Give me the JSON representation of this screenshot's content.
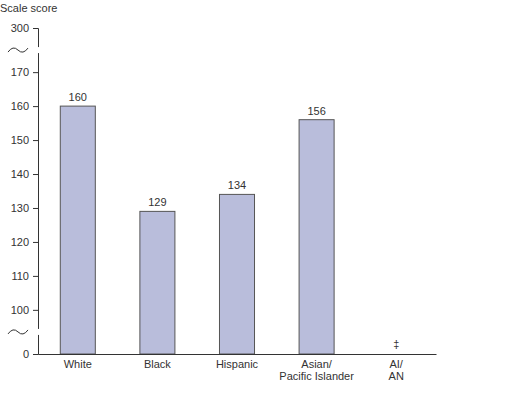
{
  "chart_data": {
    "type": "bar",
    "y_label": "Scale score",
    "categories": [
      "White",
      "Black",
      "Hispanic",
      "Asian/Pacific Islander",
      "AI/AN"
    ],
    "values": [
      160,
      129,
      134,
      156,
      null
    ],
    "value_labels": [
      "160",
      "129",
      "134",
      "156",
      "‡"
    ],
    "color": "#b9bddb",
    "ylim": [
      0,
      300
    ],
    "yticks": [
      0,
      100,
      110,
      120,
      130,
      140,
      150,
      160,
      170,
      300
    ],
    "data_labels": true,
    "grid": false
  }
}
